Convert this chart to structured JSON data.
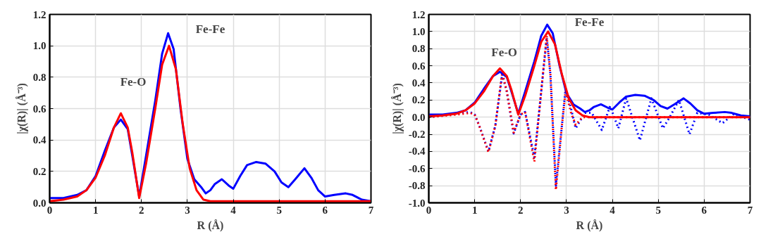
{
  "chart_data": [
    {
      "type": "line",
      "xlabel": "R (Å)",
      "ylabel": "|χ(R)| (Å⁻³)",
      "xlim": [
        0,
        7
      ],
      "ylim": [
        0,
        1.2
      ],
      "xticks": [
        0,
        1,
        2,
        3,
        4,
        5,
        6,
        7
      ],
      "yticks": [
        {
          "value": 0,
          "label": "0.0"
        },
        {
          "value": 0.2,
          "label": "0.2"
        },
        {
          "value": 0.4,
          "label": "0.4"
        },
        {
          "value": 0.6,
          "label": "0.6"
        },
        {
          "value": 0.8,
          "label": "0.8"
        },
        {
          "value": 1.0,
          "label": "1.0"
        },
        {
          "value": 1.2,
          "label": "1.2"
        }
      ],
      "grid": true,
      "line_style": "solid",
      "annotations": [
        "Fe-O",
        "Fe-Fe"
      ],
      "series": [
        {
          "color": "#0000ff",
          "x": [
            0,
            0.3,
            0.6,
            0.8,
            1.0,
            1.2,
            1.4,
            1.55,
            1.7,
            1.8,
            1.95,
            2.1,
            2.3,
            2.45,
            2.58,
            2.7,
            2.85,
            3.0,
            3.15,
            3.3,
            3.4,
            3.5,
            3.6,
            3.75,
            3.9,
            4.0,
            4.15,
            4.3,
            4.5,
            4.7,
            4.9,
            5.05,
            5.2,
            5.35,
            5.55,
            5.7,
            5.85,
            6.0,
            6.2,
            6.45,
            6.6,
            6.8,
            7.0
          ],
          "values": [
            0.03,
            0.03,
            0.05,
            0.08,
            0.17,
            0.33,
            0.48,
            0.53,
            0.47,
            0.3,
            0.04,
            0.3,
            0.65,
            0.95,
            1.08,
            0.98,
            0.6,
            0.28,
            0.15,
            0.1,
            0.06,
            0.08,
            0.12,
            0.15,
            0.11,
            0.09,
            0.17,
            0.24,
            0.26,
            0.25,
            0.2,
            0.13,
            0.1,
            0.15,
            0.22,
            0.16,
            0.08,
            0.04,
            0.05,
            0.06,
            0.05,
            0.02,
            0.01
          ]
        },
        {
          "color": "#ff0000",
          "x": [
            0,
            0.3,
            0.6,
            0.8,
            1.0,
            1.2,
            1.4,
            1.55,
            1.7,
            1.8,
            1.95,
            2.1,
            2.3,
            2.45,
            2.6,
            2.75,
            2.9,
            3.05,
            3.2,
            3.35,
            3.5,
            5.0,
            7.0
          ],
          "values": [
            0.01,
            0.02,
            0.04,
            0.08,
            0.16,
            0.3,
            0.48,
            0.57,
            0.48,
            0.32,
            0.03,
            0.25,
            0.6,
            0.88,
            1.0,
            0.85,
            0.5,
            0.22,
            0.08,
            0.02,
            0.01,
            0.01,
            0.01
          ]
        }
      ]
    },
    {
      "type": "line",
      "xlabel": "R (Å)",
      "ylabel": "|χ(R)| (Å⁻³)",
      "xlim": [
        0,
        7
      ],
      "ylim": [
        -1.0,
        1.2
      ],
      "xticks": [
        0,
        1,
        2,
        3,
        4,
        5,
        6,
        7
      ],
      "yticks": [
        {
          "value": -1.0,
          "label": "-1.0"
        },
        {
          "value": -0.8,
          "label": "-0.8"
        },
        {
          "value": -0.6,
          "label": "-0.6"
        },
        {
          "value": -0.4,
          "label": "-0.4"
        },
        {
          "value": -0.2,
          "label": "-0.2"
        },
        {
          "value": 0,
          "label": "0.0"
        },
        {
          "value": 0.2,
          "label": "0.2"
        },
        {
          "value": 0.4,
          "label": "0.4"
        },
        {
          "value": 0.6,
          "label": "0.6"
        },
        {
          "value": 0.8,
          "label": "0.8"
        },
        {
          "value": 1.0,
          "label": "1.0"
        },
        {
          "value": 1.2,
          "label": "1.2"
        }
      ],
      "grid": true,
      "line_style": "solid",
      "annotations": [
        "Fe-O",
        "Fe-Fe"
      ],
      "series": [
        {
          "color": "#0000ff",
          "line_style": "dotted",
          "x": [
            0,
            0.6,
            0.9,
            1.0,
            1.1,
            1.3,
            1.45,
            1.6,
            1.7,
            1.85,
            2.0,
            2.1,
            2.3,
            2.45,
            2.57,
            2.65,
            2.77,
            2.9,
            2.98,
            3.1,
            3.2,
            3.4,
            3.55,
            3.77,
            3.95,
            4.13,
            4.3,
            4.6,
            4.85,
            5.1,
            5.25,
            5.45,
            5.68,
            5.85,
            6.1,
            6.4,
            6.65,
            7.0
          ],
          "values": [
            0,
            0.04,
            0.06,
            0.03,
            -0.1,
            -0.4,
            -0.1,
            0.5,
            0.3,
            -0.19,
            0.03,
            0.06,
            -0.47,
            0.3,
            0.93,
            0.5,
            -0.8,
            -0.1,
            0.33,
            0.1,
            -0.13,
            0.05,
            0.05,
            -0.15,
            0.13,
            -0.13,
            0.22,
            -0.27,
            0.22,
            -0.13,
            0,
            0.2,
            -0.2,
            0.05,
            0.03,
            -0.07,
            0.04,
            -0.03
          ]
        },
        {
          "color": "#ff0000",
          "line_style": "dotted",
          "x": [
            0,
            0.6,
            0.9,
            1.0,
            1.1,
            1.3,
            1.45,
            1.6,
            1.7,
            1.85,
            2.0,
            2.1,
            2.3,
            2.45,
            2.57,
            2.65,
            2.77,
            2.9,
            2.98,
            3.1,
            3.2,
            3.35,
            3.5,
            7.0
          ],
          "values": [
            0,
            0.03,
            0.05,
            0.03,
            -0.1,
            -0.41,
            -0.1,
            0.52,
            0.3,
            -0.18,
            0.03,
            0.06,
            -0.52,
            0.3,
            0.95,
            0.5,
            -0.85,
            -0.1,
            0.3,
            0.05,
            -0.09,
            0,
            0,
            0
          ]
        },
        {
          "color": "#0000ff",
          "x": [
            0,
            0.3,
            0.6,
            0.8,
            1.0,
            1.2,
            1.4,
            1.55,
            1.7,
            1.8,
            1.95,
            2.1,
            2.3,
            2.45,
            2.58,
            2.7,
            2.85,
            3.0,
            3.15,
            3.3,
            3.4,
            3.5,
            3.6,
            3.75,
            3.9,
            4.0,
            4.15,
            4.3,
            4.5,
            4.7,
            4.9,
            5.05,
            5.2,
            5.35,
            5.55,
            5.7,
            5.85,
            6.0,
            6.2,
            6.45,
            6.6,
            6.8,
            7.0
          ],
          "values": [
            0.03,
            0.03,
            0.05,
            0.08,
            0.17,
            0.33,
            0.48,
            0.53,
            0.47,
            0.3,
            0.04,
            0.3,
            0.65,
            0.95,
            1.08,
            0.98,
            0.6,
            0.28,
            0.15,
            0.1,
            0.06,
            0.08,
            0.12,
            0.15,
            0.11,
            0.09,
            0.17,
            0.24,
            0.26,
            0.25,
            0.2,
            0.13,
            0.1,
            0.15,
            0.22,
            0.16,
            0.08,
            0.04,
            0.05,
            0.06,
            0.05,
            0.02,
            0.01
          ]
        },
        {
          "color": "#ff0000",
          "x": [
            0,
            0.3,
            0.6,
            0.8,
            1.0,
            1.2,
            1.4,
            1.55,
            1.7,
            1.8,
            1.95,
            2.1,
            2.3,
            2.45,
            2.6,
            2.75,
            2.9,
            3.05,
            3.2,
            3.35,
            3.5,
            5.0,
            7.0
          ],
          "values": [
            0.01,
            0.02,
            0.04,
            0.08,
            0.16,
            0.3,
            0.48,
            0.57,
            0.48,
            0.32,
            0.03,
            0.25,
            0.6,
            0.88,
            1.0,
            0.85,
            0.5,
            0.22,
            0.08,
            0.02,
            0,
            0,
            0
          ]
        }
      ]
    }
  ]
}
